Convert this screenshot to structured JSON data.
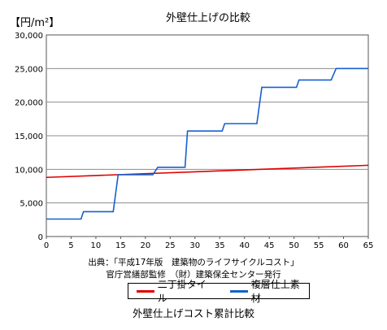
{
  "chart_data": {
    "type": "line",
    "title": "外壁仕上げの比較",
    "unit_label": "【円/m²】",
    "xlim": [
      0,
      65
    ],
    "ylim": [
      0,
      30000
    ],
    "x_ticks": [
      0,
      5,
      10,
      15,
      20,
      25,
      30,
      35,
      40,
      45,
      50,
      55,
      60,
      65
    ],
    "y_ticks": [
      0,
      5000,
      10000,
      15000,
      20000,
      25000,
      30000
    ],
    "y_tick_labels": [
      "0",
      "5,000",
      "10,000",
      "15,000",
      "20,000",
      "25,000",
      "30,000"
    ],
    "grid": "horizontal",
    "legend_position": "bottom",
    "series": [
      {
        "name": "二丁掛タイル",
        "color": "#dd0000",
        "points": [
          [
            0,
            8800
          ],
          [
            65,
            10600
          ]
        ]
      },
      {
        "name": "複層仕上素材",
        "color": "#1560d0",
        "points": [
          [
            0,
            2600
          ],
          [
            7,
            2600
          ],
          [
            7.5,
            3700
          ],
          [
            13.5,
            3700
          ],
          [
            14.5,
            9200
          ],
          [
            21.5,
            9200
          ],
          [
            22.5,
            10300
          ],
          [
            28,
            10300
          ],
          [
            28.5,
            15700
          ],
          [
            35.5,
            15700
          ],
          [
            36,
            16800
          ],
          [
            42.5,
            16800
          ],
          [
            43.5,
            22200
          ],
          [
            50.5,
            22200
          ],
          [
            51,
            23300
          ],
          [
            57.5,
            23300
          ],
          [
            58.5,
            25000
          ],
          [
            65,
            25000
          ]
        ]
      }
    ]
  },
  "source_lines": [
    "出典：「平成17年版　建築物のライフサイクルコスト」",
    "官庁営繕部監修　（財）建築保全センター発行"
  ],
  "caption": "外壁仕上げコスト累計比較"
}
